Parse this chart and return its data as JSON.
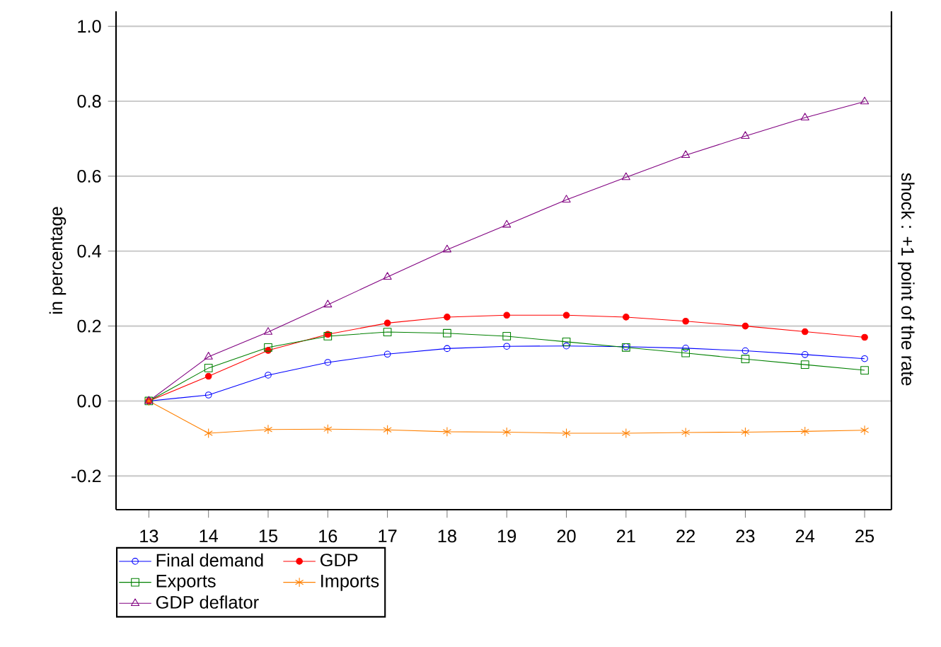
{
  "chart_data": {
    "type": "line",
    "ylabel": "in percentage",
    "y2label": "shock : +1 point of the rate",
    "x": [
      13,
      14,
      15,
      16,
      17,
      18,
      19,
      20,
      21,
      22,
      23,
      24,
      25
    ],
    "xlim": [
      12.45,
      25.45
    ],
    "xticks": [
      13,
      14,
      15,
      16,
      17,
      18,
      19,
      20,
      21,
      22,
      23,
      24,
      25
    ],
    "ylim": [
      -0.29,
      1.04
    ],
    "yticks": [
      {
        "value": -0.2,
        "label": "-0.2"
      },
      {
        "value": 0,
        "label": "0.0"
      },
      {
        "value": 0.2,
        "label": "0.2"
      },
      {
        "value": 0.4,
        "label": "0.4"
      },
      {
        "value": 0.6,
        "label": "0.6"
      },
      {
        "value": 0.8,
        "label": "0.8"
      },
      {
        "value": 1.0,
        "label": "1.0"
      }
    ],
    "grid": "y",
    "legend": "bottom",
    "series": [
      {
        "name": "Final demand",
        "color": "#0000ff",
        "marker": "circle",
        "values": [
          0,
          0.016,
          0.069,
          0.103,
          0.125,
          0.14,
          0.146,
          0.147,
          0.145,
          0.141,
          0.134,
          0.124,
          0.113
        ]
      },
      {
        "name": "GDP",
        "color": "#ff0000",
        "marker": "circle",
        "values": [
          0,
          0.066,
          0.135,
          0.178,
          0.208,
          0.224,
          0.229,
          0.229,
          0.224,
          0.213,
          0.2,
          0.185,
          0.17
        ]
      },
      {
        "name": "Exports",
        "color": "#008000",
        "marker": "square",
        "values": [
          0,
          0.088,
          0.143,
          0.173,
          0.184,
          0.181,
          0.173,
          0.158,
          0.143,
          0.128,
          0.112,
          0.097,
          0.082
        ]
      },
      {
        "name": "Imports",
        "color": "#ff8000",
        "marker": "cross",
        "values": [
          0,
          -0.086,
          -0.076,
          -0.075,
          -0.077,
          -0.082,
          -0.083,
          -0.086,
          -0.086,
          -0.084,
          -0.083,
          -0.081,
          -0.078
        ]
      },
      {
        "name": "GDP deflator",
        "color": "#800080",
        "marker": "triangle",
        "values": [
          0,
          0.118,
          0.184,
          0.257,
          0.331,
          0.404,
          0.47,
          0.537,
          0.597,
          0.656,
          0.707,
          0.756,
          0.799
        ]
      }
    ]
  }
}
